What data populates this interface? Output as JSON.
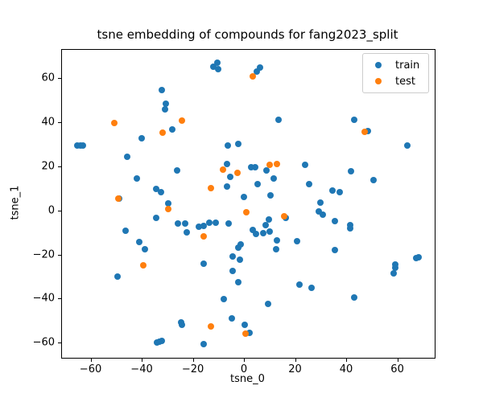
{
  "chart_data": {
    "type": "scatter",
    "title": "tsne embedding of compounds for fang2023_split",
    "xlabel": "tsne_0",
    "ylabel": "tsne_1",
    "xlim": [
      -71.5,
      74.3
    ],
    "ylim": [
      -66.5,
      73.2
    ],
    "xticks": [
      -60,
      -40,
      -20,
      0,
      20,
      40,
      60
    ],
    "yticks": [
      -60,
      -40,
      -20,
      0,
      20,
      40,
      60
    ],
    "grid": false,
    "legend": {
      "position": "upper right",
      "entries": [
        {
          "label": "train",
          "color": "#1f77b4"
        },
        {
          "label": "test",
          "color": "#ff7f0e"
        }
      ]
    },
    "series": [
      {
        "name": "train",
        "color": "#1f77b4",
        "points": [
          [
            -10.8,
            67.4
          ],
          [
            -12.3,
            65.7
          ],
          [
            -10.3,
            64.4
          ],
          [
            5.9,
            65.0
          ],
          [
            4.6,
            63.4
          ],
          [
            -32.5,
            55.1
          ],
          [
            -30.8,
            48.9
          ],
          [
            -31.3,
            46.2
          ],
          [
            -28.3,
            37.1
          ],
          [
            -40.4,
            33.2
          ],
          [
            -65.5,
            29.7
          ],
          [
            -64.4,
            29.7
          ],
          [
            -63.3,
            29.8
          ],
          [
            -6.5,
            29.9
          ],
          [
            -2.5,
            30.4
          ],
          [
            63.7,
            29.7
          ],
          [
            13.1,
            41.4
          ],
          [
            42.9,
            41.4
          ],
          [
            48.2,
            36.4
          ],
          [
            -46.0,
            24.8
          ],
          [
            -26.4,
            18.6
          ],
          [
            -6.9,
            21.5
          ],
          [
            -5.7,
            15.5
          ],
          [
            -42.2,
            14.9
          ],
          [
            -7.1,
            11.2
          ],
          [
            -34.7,
            10.2
          ],
          [
            -32.9,
            8.8
          ],
          [
            -49.0,
            5.7
          ],
          [
            -0.2,
            6.6
          ],
          [
            -29.8,
            3.7
          ],
          [
            2.4,
            20.1
          ],
          [
            4.0,
            20.1
          ],
          [
            8.5,
            18.6
          ],
          [
            23.7,
            20.9
          ],
          [
            11.2,
            14.7
          ],
          [
            41.7,
            18.2
          ],
          [
            5.0,
            12.2
          ],
          [
            25.3,
            12.4
          ],
          [
            50.3,
            14.1
          ],
          [
            34.4,
            9.5
          ],
          [
            37.1,
            8.8
          ],
          [
            10.0,
            7.2
          ],
          [
            29.6,
            3.9
          ],
          [
            -34.6,
            -3.0
          ],
          [
            -26.0,
            -5.5
          ],
          [
            -23.4,
            -5.7
          ],
          [
            -17.9,
            -6.9
          ],
          [
            -16.0,
            -6.6
          ],
          [
            -13.8,
            -5.4
          ],
          [
            -11.3,
            -5.2
          ],
          [
            -6.3,
            -5.6
          ],
          [
            -22.8,
            -9.5
          ],
          [
            -46.6,
            -8.8
          ],
          [
            29.0,
            -0.1
          ],
          [
            30.6,
            -1.5
          ],
          [
            15.9,
            -2.9
          ],
          [
            9.4,
            -3.8
          ],
          [
            8.3,
            -6.3
          ],
          [
            7.1,
            -10.0
          ],
          [
            9.9,
            -9.1
          ],
          [
            3.1,
            -8.5
          ],
          [
            4.3,
            -10.4
          ],
          [
            35.4,
            -4.6
          ],
          [
            41.2,
            -6.2
          ],
          [
            41.3,
            -7.7
          ],
          [
            -41.2,
            -13.9
          ],
          [
            -39.1,
            -17.3
          ],
          [
            -1.7,
            -15.2
          ],
          [
            -2.4,
            -16.6
          ],
          [
            -4.8,
            -20.6
          ],
          [
            -2.0,
            -22.0
          ],
          [
            12.5,
            -13.1
          ],
          [
            20.5,
            -13.6
          ],
          [
            12.3,
            -17.4
          ],
          [
            35.4,
            -17.5
          ],
          [
            67.1,
            -21.2
          ],
          [
            68.1,
            -21.0
          ],
          [
            -16.2,
            -23.9
          ],
          [
            58.8,
            -24.3
          ],
          [
            59.0,
            -25.8
          ],
          [
            58.3,
            -28.2
          ],
          [
            -49.7,
            -29.7
          ],
          [
            -4.6,
            -27.1
          ],
          [
            -2.4,
            -32.1
          ],
          [
            21.3,
            -33.3
          ],
          [
            26.1,
            -34.7
          ],
          [
            -8.3,
            -39.8
          ],
          [
            42.7,
            -39.1
          ],
          [
            9.0,
            -42.2
          ],
          [
            -4.9,
            -48.8
          ],
          [
            -25.0,
            -50.6
          ],
          [
            -24.6,
            -51.6
          ],
          [
            0.1,
            -51.5
          ],
          [
            1.8,
            -55.2
          ],
          [
            -34.2,
            -59.5
          ],
          [
            -33.5,
            -59.3
          ],
          [
            -32.5,
            -58.8
          ],
          [
            -16.2,
            -60.3
          ]
        ]
      },
      {
        "name": "test",
        "color": "#ff7f0e",
        "points": [
          [
            -50.9,
            40.1
          ],
          [
            -24.7,
            41.1
          ],
          [
            -32.1,
            35.8
          ],
          [
            3.1,
            61.3
          ],
          [
            47.0,
            36.1
          ],
          [
            9.9,
            21.1
          ],
          [
            12.7,
            21.3
          ],
          [
            -8.4,
            18.8
          ],
          [
            -2.7,
            17.4
          ],
          [
            -13.4,
            10.4
          ],
          [
            -49.5,
            5.8
          ],
          [
            -29.8,
            0.9
          ],
          [
            0.5,
            -0.4
          ],
          [
            15.5,
            -2.4
          ],
          [
            -16.2,
            -11.3
          ],
          [
            -39.7,
            -24.6
          ],
          [
            -13.2,
            -52.4
          ],
          [
            0.3,
            -55.5
          ]
        ]
      }
    ]
  }
}
